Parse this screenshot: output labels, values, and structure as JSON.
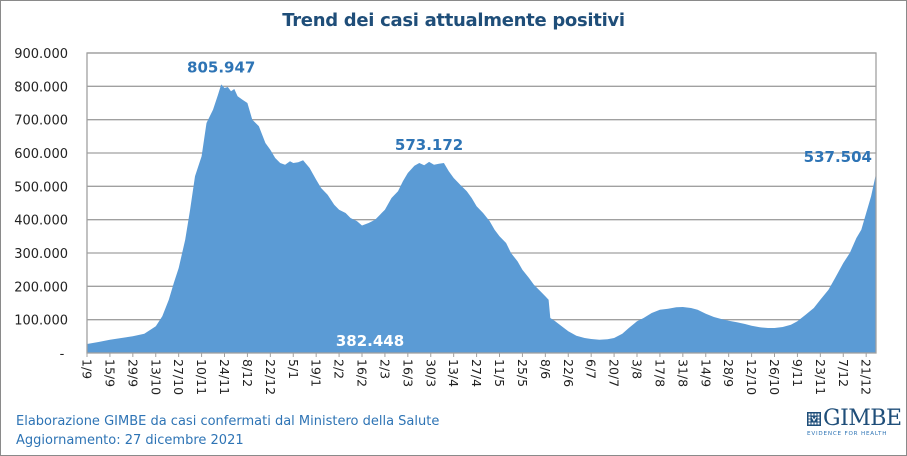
{
  "chart_data": {
    "type": "area",
    "title": "Trend dei casi attualmente positivi",
    "xlabel": "",
    "ylabel": "",
    "ylim": [
      0,
      900000
    ],
    "grid": true,
    "legend": "none",
    "color": "#5b9bd5",
    "y_ticks": [
      {
        "value": 0,
        "label": "-"
      },
      {
        "value": 100000,
        "label": "100.000"
      },
      {
        "value": 200000,
        "label": "200.000"
      },
      {
        "value": 300000,
        "label": "300.000"
      },
      {
        "value": 400000,
        "label": "400.000"
      },
      {
        "value": 500000,
        "label": "500.000"
      },
      {
        "value": 600000,
        "label": "600.000"
      },
      {
        "value": 700000,
        "label": "700.000"
      },
      {
        "value": 800000,
        "label": "800.000"
      },
      {
        "value": 900000,
        "label": "900.000"
      }
    ],
    "x_day_range": [
      0,
      482
    ],
    "x_ticks": [
      {
        "day": 0,
        "label": "1/9"
      },
      {
        "day": 14,
        "label": "15/9"
      },
      {
        "day": 28,
        "label": "29/9"
      },
      {
        "day": 42,
        "label": "13/10"
      },
      {
        "day": 56,
        "label": "27/10"
      },
      {
        "day": 70,
        "label": "10/11"
      },
      {
        "day": 84,
        "label": "24/11"
      },
      {
        "day": 98,
        "label": "8/12"
      },
      {
        "day": 112,
        "label": "22/12"
      },
      {
        "day": 126,
        "label": "5/1"
      },
      {
        "day": 140,
        "label": "19/1"
      },
      {
        "day": 154,
        "label": "2/2"
      },
      {
        "day": 168,
        "label": "16/2"
      },
      {
        "day": 182,
        "label": "2/3"
      },
      {
        "day": 196,
        "label": "16/3"
      },
      {
        "day": 210,
        "label": "30/3"
      },
      {
        "day": 224,
        "label": "13/4"
      },
      {
        "day": 238,
        "label": "27/4"
      },
      {
        "day": 252,
        "label": "11/5"
      },
      {
        "day": 266,
        "label": "25/5"
      },
      {
        "day": 280,
        "label": "8/6"
      },
      {
        "day": 294,
        "label": "22/6"
      },
      {
        "day": 308,
        "label": "6/7"
      },
      {
        "day": 322,
        "label": "20/7"
      },
      {
        "day": 336,
        "label": "3/8"
      },
      {
        "day": 350,
        "label": "17/8"
      },
      {
        "day": 364,
        "label": "31/8"
      },
      {
        "day": 378,
        "label": "14/9"
      },
      {
        "day": 392,
        "label": "28/9"
      },
      {
        "day": 406,
        "label": "12/10"
      },
      {
        "day": 420,
        "label": "26/10"
      },
      {
        "day": 434,
        "label": "9/11"
      },
      {
        "day": 448,
        "label": "23/11"
      },
      {
        "day": 462,
        "label": "7/12"
      },
      {
        "day": 476,
        "label": "21/12"
      }
    ],
    "series": [
      {
        "name": "Casi attualmente positivi",
        "points": [
          [
            0,
            27000
          ],
          [
            7,
            33000
          ],
          [
            14,
            40000
          ],
          [
            21,
            45000
          ],
          [
            28,
            50000
          ],
          [
            35,
            58000
          ],
          [
            42,
            80000
          ],
          [
            46,
            110000
          ],
          [
            50,
            160000
          ],
          [
            53,
            210000
          ],
          [
            56,
            255000
          ],
          [
            60,
            340000
          ],
          [
            63,
            430000
          ],
          [
            66,
            530000
          ],
          [
            70,
            590000
          ],
          [
            73,
            690000
          ],
          [
            77,
            730000
          ],
          [
            80,
            775000
          ],
          [
            82,
            805947
          ],
          [
            84,
            795000
          ],
          [
            86,
            798000
          ],
          [
            88,
            785000
          ],
          [
            90,
            792000
          ],
          [
            92,
            770000
          ],
          [
            95,
            760000
          ],
          [
            98,
            750000
          ],
          [
            101,
            700000
          ],
          [
            105,
            680000
          ],
          [
            109,
            630000
          ],
          [
            112,
            610000
          ],
          [
            115,
            585000
          ],
          [
            118,
            570000
          ],
          [
            121,
            565000
          ],
          [
            124,
            575000
          ],
          [
            126,
            570000
          ],
          [
            129,
            572000
          ],
          [
            132,
            578000
          ],
          [
            136,
            555000
          ],
          [
            140,
            520000
          ],
          [
            143,
            495000
          ],
          [
            147,
            475000
          ],
          [
            151,
            445000
          ],
          [
            154,
            430000
          ],
          [
            158,
            420000
          ],
          [
            161,
            405000
          ],
          [
            165,
            395000
          ],
          [
            168,
            382448
          ],
          [
            172,
            390000
          ],
          [
            176,
            400000
          ],
          [
            179,
            415000
          ],
          [
            182,
            430000
          ],
          [
            186,
            465000
          ],
          [
            190,
            485000
          ],
          [
            193,
            515000
          ],
          [
            196,
            540000
          ],
          [
            200,
            562000
          ],
          [
            203,
            570000
          ],
          [
            206,
            563000
          ],
          [
            209,
            573172
          ],
          [
            212,
            565000
          ],
          [
            215,
            568000
          ],
          [
            218,
            570000
          ],
          [
            221,
            545000
          ],
          [
            224,
            525000
          ],
          [
            228,
            505000
          ],
          [
            232,
            485000
          ],
          [
            235,
            465000
          ],
          [
            238,
            440000
          ],
          [
            242,
            420000
          ],
          [
            246,
            395000
          ],
          [
            249,
            370000
          ],
          [
            252,
            350000
          ],
          [
            256,
            330000
          ],
          [
            259,
            300000
          ],
          [
            263,
            275000
          ],
          [
            266,
            250000
          ],
          [
            270,
            225000
          ],
          [
            273,
            205000
          ],
          [
            277,
            185000
          ],
          [
            280,
            170000
          ],
          [
            282,
            160000
          ],
          [
            283,
            105000
          ],
          [
            286,
            95000
          ],
          [
            290,
            80000
          ],
          [
            294,
            65000
          ],
          [
            299,
            52000
          ],
          [
            304,
            45000
          ],
          [
            308,
            42000
          ],
          [
            313,
            40000
          ],
          [
            318,
            41000
          ],
          [
            322,
            45000
          ],
          [
            327,
            58000
          ],
          [
            331,
            75000
          ],
          [
            336,
            95000
          ],
          [
            340,
            105000
          ],
          [
            345,
            120000
          ],
          [
            350,
            130000
          ],
          [
            355,
            133000
          ],
          [
            360,
            137000
          ],
          [
            364,
            138000
          ],
          [
            369,
            135000
          ],
          [
            373,
            130000
          ],
          [
            378,
            118000
          ],
          [
            383,
            108000
          ],
          [
            388,
            101000
          ],
          [
            392,
            97000
          ],
          [
            397,
            92000
          ],
          [
            402,
            87000
          ],
          [
            406,
            82000
          ],
          [
            411,
            77000
          ],
          [
            416,
            75000
          ],
          [
            420,
            75000
          ],
          [
            425,
            78000
          ],
          [
            430,
            85000
          ],
          [
            434,
            95000
          ],
          [
            439,
            115000
          ],
          [
            444,
            135000
          ],
          [
            448,
            160000
          ],
          [
            453,
            190000
          ],
          [
            457,
            225000
          ],
          [
            462,
            270000
          ],
          [
            466,
            300000
          ],
          [
            470,
            345000
          ],
          [
            473,
            370000
          ],
          [
            476,
            420000
          ],
          [
            479,
            470000
          ],
          [
            482,
            537504
          ]
        ]
      }
    ],
    "annotations": [
      {
        "day": 82,
        "value": 805947,
        "label": "805.947",
        "color": "#2e74b5",
        "position": "above"
      },
      {
        "day": 209,
        "value": 573172,
        "label": "573.172",
        "color": "#2e74b5",
        "position": "above"
      },
      {
        "day": 168,
        "value": 382448,
        "label": "382.448",
        "color": "#ffffff",
        "position": "inside-bottom"
      },
      {
        "day": 482,
        "value": 537504,
        "label": "537.504",
        "color": "#2e74b5",
        "position": "above-left"
      }
    ]
  },
  "footer": {
    "line1": "Elaborazione GIMBE da casi confermati dal Ministero della Salute",
    "line2": "Aggiornamento: 27 dicembre 2021"
  },
  "logo": {
    "name": "GIMBE",
    "tagline": "EVIDENCE FOR HEALTH",
    "color": "#1f4e79"
  }
}
